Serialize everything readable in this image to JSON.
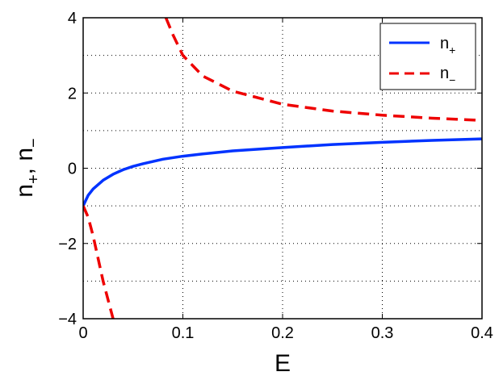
{
  "chart_data": {
    "type": "line",
    "title": "",
    "xlabel": "E",
    "ylabel": {
      "parts": [
        {
          "text": "n",
          "sub": "+"
        },
        {
          "text": ", n",
          "sub": "−"
        }
      ]
    },
    "xlim": [
      0,
      0.4
    ],
    "ylim": [
      -4,
      4
    ],
    "xticks": [
      "0",
      "0.1",
      "0.2",
      "0.3",
      "0.4"
    ],
    "yticks": [
      "−4",
      "−2",
      "0",
      "2",
      "4"
    ],
    "grid": true,
    "legend_position": "top-right",
    "series": [
      {
        "name": "n",
        "name_sub": "+",
        "color": "#0033ff",
        "style": "solid",
        "x": [
          0.0,
          0.005,
          0.01,
          0.02,
          0.03,
          0.04,
          0.05,
          0.06,
          0.08,
          0.1,
          0.12,
          0.15,
          0.2,
          0.25,
          0.3,
          0.35,
          0.4
        ],
        "y": [
          -1.0,
          -0.72,
          -0.55,
          -0.32,
          -0.16,
          -0.04,
          0.05,
          0.12,
          0.24,
          0.32,
          0.38,
          0.46,
          0.55,
          0.63,
          0.69,
          0.74,
          0.78
        ]
      },
      {
        "name": "n",
        "name_sub": "−",
        "color": "#ee0000",
        "style": "dashed",
        "segments": [
          {
            "x": [
              0.0,
              0.005,
              0.01,
              0.015,
              0.02,
              0.025,
              0.03
            ],
            "y": [
              -1.0,
              -1.3,
              -1.8,
              -2.4,
              -3.0,
              -3.5,
              -4.0
            ]
          },
          {
            "x": [
              0.083,
              0.09,
              0.1,
              0.12,
              0.15,
              0.2,
              0.25,
              0.3,
              0.35,
              0.4
            ],
            "y": [
              4.0,
              3.55,
              3.0,
              2.45,
              2.05,
              1.7,
              1.52,
              1.41,
              1.33,
              1.27
            ]
          }
        ]
      }
    ]
  }
}
